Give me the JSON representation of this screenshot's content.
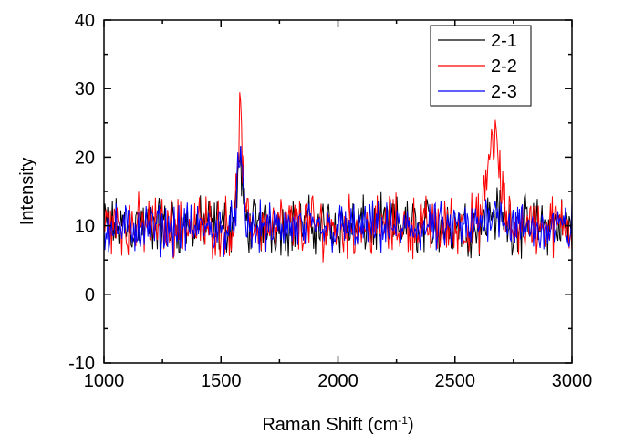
{
  "chart_data": {
    "type": "line",
    "title": "",
    "xlabel": "Raman Shift (cm",
    "xlabel_sup": "-1",
    "xlabel_end": ")",
    "ylabel": "Intensity",
    "xlim": [
      1000,
      3000
    ],
    "ylim": [
      -10,
      40
    ],
    "x_ticks": [
      1000,
      1500,
      2000,
      2500,
      3000
    ],
    "x_tick_labels": [
      "1000",
      "1500",
      "2000",
      "2500",
      "3000"
    ],
    "y_ticks": [
      -10,
      0,
      10,
      20,
      30,
      40
    ],
    "y_tick_labels": [
      "-10",
      "0",
      "10",
      "20",
      "30",
      "40"
    ],
    "legend_position": "top-right",
    "grid": false,
    "x_step": 4,
    "series": [
      {
        "name": "2-1",
        "color": "#000000",
        "baseline": 10,
        "noise": 3.2,
        "peaks": [
          {
            "center": 1580,
            "width": 12,
            "height": 9
          },
          {
            "center": 2670,
            "width": 30,
            "height": 2
          }
        ]
      },
      {
        "name": "2-2",
        "color": "#ff0000",
        "baseline": 10,
        "noise": 3.4,
        "peaks": [
          {
            "center": 1582,
            "width": 10,
            "height": 16
          },
          {
            "center": 2665,
            "width": 25,
            "height": 13
          }
        ]
      },
      {
        "name": "2-3",
        "color": "#0000ff",
        "baseline": 9.6,
        "noise": 2.8,
        "peaks": [
          {
            "center": 1580,
            "width": 12,
            "height": 10
          },
          {
            "center": 2670,
            "width": 35,
            "height": 3
          }
        ]
      }
    ]
  }
}
